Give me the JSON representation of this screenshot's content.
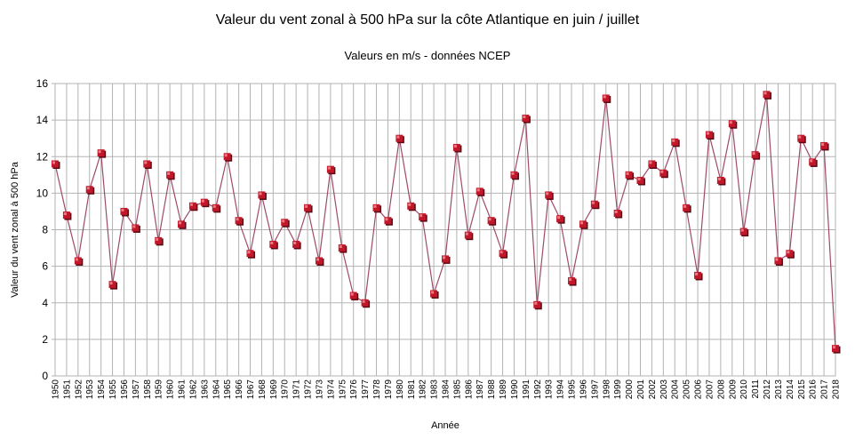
{
  "chart_data": {
    "type": "line",
    "title": "Valeur du vent zonal à 500 hPa sur la côte Atlantique en juin / juillet",
    "subtitle": "Valeurs en m/s - données NCEP",
    "xlabel": "Année",
    "ylabel": "Valeur du vent zonal à 500 hPa",
    "ylim": [
      0,
      16
    ],
    "yticks": [
      0,
      2,
      4,
      6,
      8,
      10,
      12,
      14,
      16
    ],
    "grid": true,
    "legend": "none",
    "line_color": "#9e4a6b",
    "marker_color": "#c0182a",
    "categories": [
      "1950",
      "1951",
      "1952",
      "1953",
      "1954",
      "1955",
      "1956",
      "1957",
      "1958",
      "1959",
      "1960",
      "1961",
      "1962",
      "1963",
      "1964",
      "1965",
      "1966",
      "1967",
      "1968",
      "1969",
      "1970",
      "1971",
      "1972",
      "1973",
      "1974",
      "1975",
      "1976",
      "1977",
      "1978",
      "1979",
      "1980",
      "1981",
      "1982",
      "1983",
      "1984",
      "1985",
      "1986",
      "1987",
      "1988",
      "1989",
      "1990",
      "1991",
      "1992",
      "1993",
      "1994",
      "1995",
      "1996",
      "1997",
      "1998",
      "1999",
      "2000",
      "2001",
      "2002",
      "2003",
      "2004",
      "2005",
      "2006",
      "2007",
      "2008",
      "2009",
      "2010",
      "2011",
      "2012",
      "2013",
      "2014",
      "2015",
      "2016",
      "2017",
      "2018"
    ],
    "values": [
      11.6,
      8.8,
      6.3,
      10.2,
      12.2,
      5.0,
      9.0,
      8.1,
      11.6,
      7.4,
      11.0,
      8.3,
      9.3,
      9.5,
      9.2,
      12.0,
      8.5,
      6.7,
      9.9,
      7.2,
      8.4,
      7.2,
      9.2,
      6.3,
      11.3,
      7.0,
      4.4,
      4.0,
      9.2,
      8.5,
      13.0,
      9.3,
      8.7,
      4.5,
      6.4,
      12.5,
      7.7,
      10.1,
      8.5,
      6.7,
      11.0,
      14.1,
      3.9,
      9.9,
      8.6,
      5.2,
      8.3,
      9.4,
      15.2,
      8.9,
      11.0,
      10.7,
      11.6,
      11.1,
      12.8,
      9.2,
      5.5,
      13.2,
      10.7,
      13.8,
      7.9,
      12.1,
      15.4,
      6.3,
      6.7,
      13.0,
      11.7,
      12.6,
      1.5
    ]
  }
}
